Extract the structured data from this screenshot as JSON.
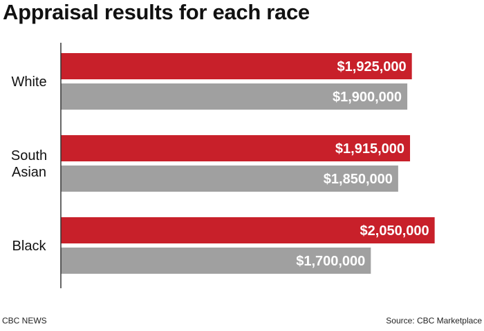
{
  "chart_data": {
    "type": "bar",
    "orientation": "horizontal",
    "title": "Appraisal results for each race",
    "categories": [
      "White",
      "South Asian",
      "Black"
    ],
    "category_lines": [
      [
        "White"
      ],
      [
        "South",
        "Asian"
      ],
      [
        "Black"
      ]
    ],
    "series": [
      {
        "name": "series-1",
        "color": "#c8202a",
        "values": [
          1925000,
          1915000,
          2050000
        ],
        "labels": [
          "$1,925,000",
          "$1,915,000",
          "$2,050,000"
        ]
      },
      {
        "name": "series-2",
        "color": "#a0a0a0",
        "values": [
          1900000,
          1850000,
          1700000
        ],
        "labels": [
          "$1,900,000",
          "$1,850,000",
          "$1,700,000"
        ]
      }
    ],
    "xlim": [
      0,
      2150000
    ],
    "xlabel": "",
    "ylabel": "",
    "grid": false,
    "legend": "none"
  },
  "footer": {
    "source_left": "CBC NEWS",
    "source_right": "Source: CBC Marketplace"
  },
  "colors": {
    "text": "#111111",
    "axis": "#333333",
    "label_text": "#ffffff"
  }
}
